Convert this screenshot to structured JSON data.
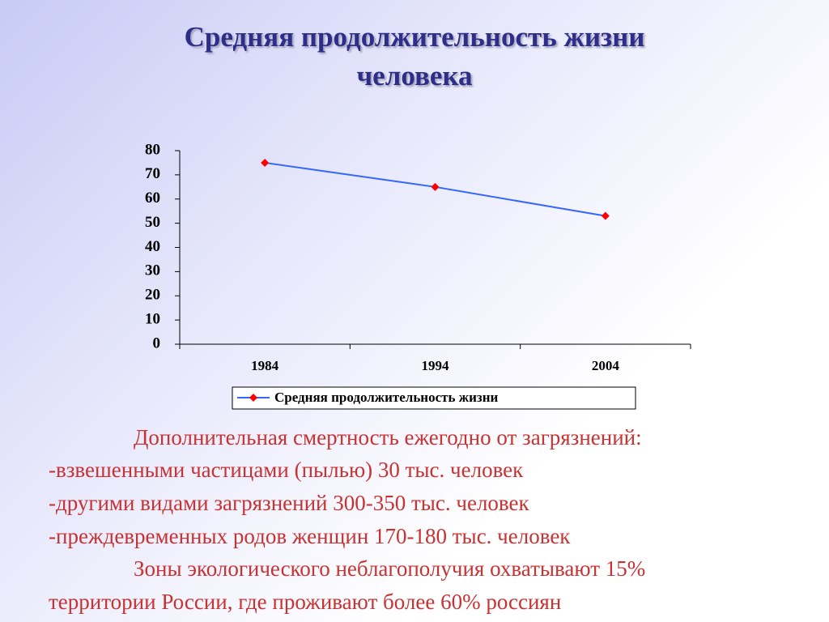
{
  "chart_data": {
    "type": "line",
    "title": "Средняя продолжительность жизни человека",
    "categories": [
      "1984",
      "1994",
      "2004"
    ],
    "series": [
      {
        "name": "Средняя продолжительность жизни",
        "color": "#3366ff",
        "marker_color": "#ff0000",
        "values": [
          75,
          65,
          53
        ]
      }
    ],
    "ylim": [
      0,
      80
    ],
    "yticks": [
      0,
      10,
      20,
      30,
      40,
      50,
      60,
      70,
      80
    ],
    "grid": false,
    "legend": "bottom"
  },
  "notes": [
    "Дополнительная смертность ежегодно от загрязнений:",
    "-взвешенными частицами (пылью) 30 тыс. человек",
    "-другими видами загрязнений 300-350 тыс. человек",
    "-преждевременных родов женщин 170-180 тыс. человек",
    "Зоны экологического неблагополучия охватывают 15%",
    "территории России, где проживают более 60% россиян"
  ]
}
